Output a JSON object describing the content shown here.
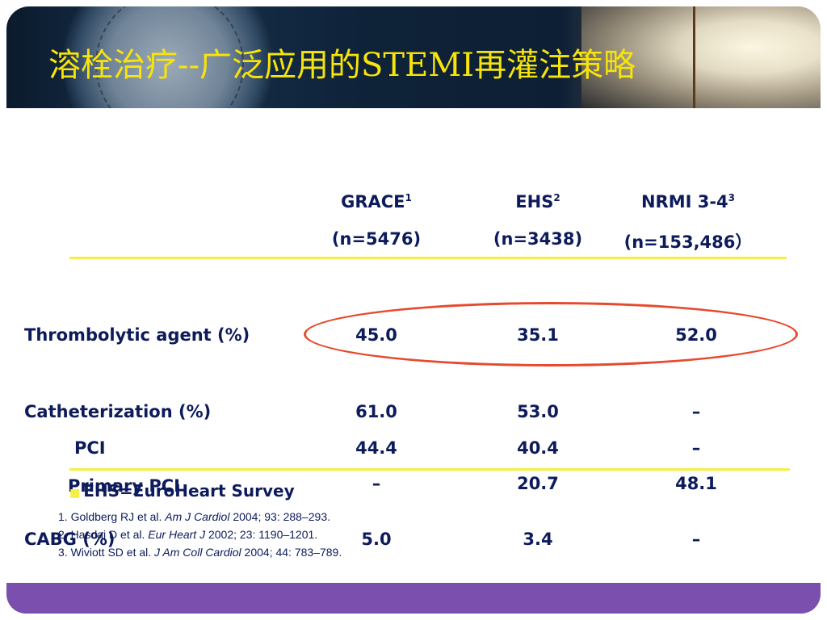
{
  "title": "溶栓治疗--广泛应用的STEMI再灌注策略",
  "columns": [
    {
      "name": "GRACE",
      "sup": "1",
      "n": "(n=5476)"
    },
    {
      "name": "EHS",
      "sup": "2",
      "n": "(n=3438)"
    },
    {
      "name": "NRMI 3-4",
      "sup": "3",
      "n": "(n=153,486）"
    }
  ],
  "rows": [
    {
      "label": "Thrombolytic agent (%)",
      "values": [
        "45.0",
        "35.1",
        "52.0"
      ]
    },
    {
      "label": "Catheterization (%)",
      "values": [
        "61.0",
        "53.0",
        "–"
      ]
    },
    {
      "label": "PCI",
      "values": [
        "44.4",
        "40.4",
        "–"
      ]
    },
    {
      "label": "Primary PCI",
      "values": [
        "–",
        "20.7",
        "48.1"
      ]
    },
    {
      "label": "CABG (%)",
      "values": [
        "5.0",
        "3.4",
        "–"
      ]
    }
  ],
  "survey_label": "EHS=EuroHeart Survey",
  "references": [
    {
      "prefix": "1. Goldberg RJ et al. ",
      "journal": "Am J Cardiol",
      "suffix": " 2004; 93: 288–293."
    },
    {
      "prefix": "2. Hasdai D et al. ",
      "journal": "Eur Heart J",
      "suffix": " 2002; 23: 1190–1201."
    },
    {
      "prefix": "3. Wiviott SD et al. ",
      "journal": "J Am Coll Cardiol",
      "suffix": " 2004; 44: 783–789."
    }
  ],
  "colors": {
    "title": "#f7e40a",
    "text": "#0d1b5c",
    "rule": "#f5ee45",
    "highlight_ellipse": "#e64a2e",
    "footer_bar": "#7b4fae"
  },
  "icons": [
    "bullet-icon"
  ]
}
